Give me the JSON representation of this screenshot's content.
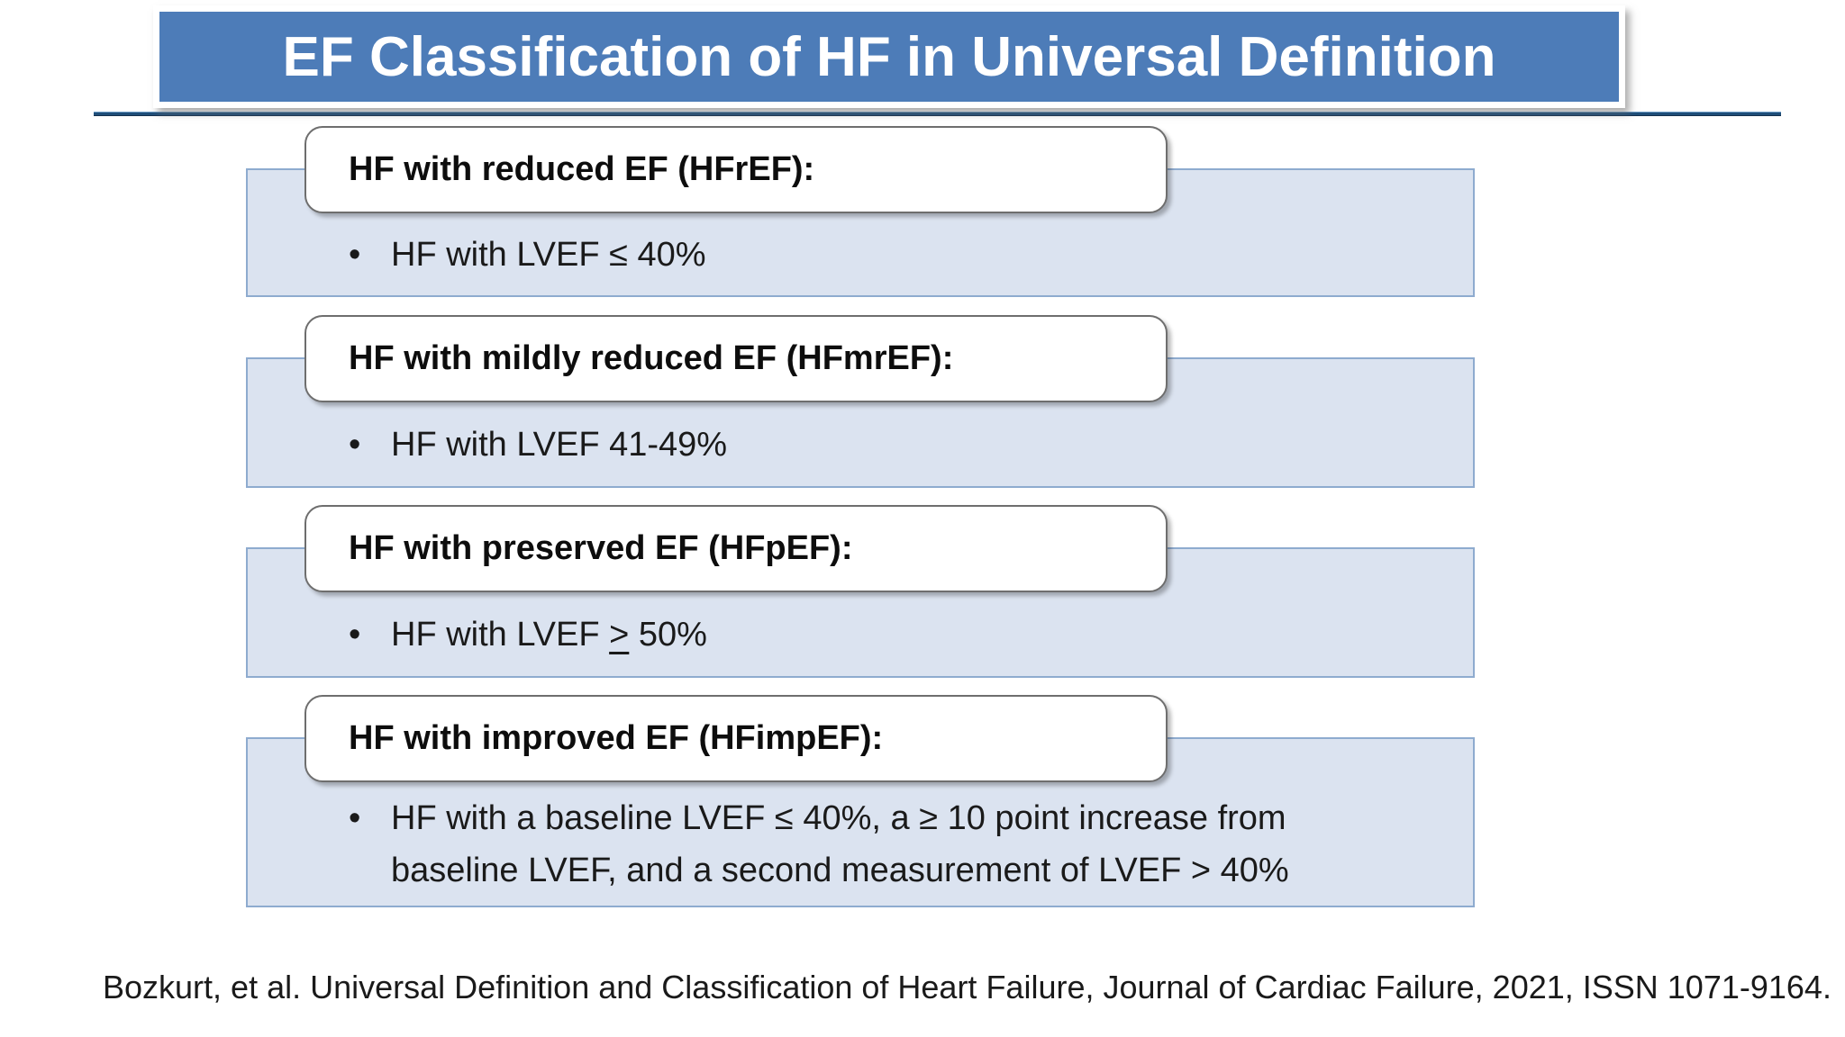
{
  "slide": {
    "title": "EF Classification of HF in Universal Definition",
    "citation": "Bozkurt, et al. Universal Definition and Classification of Heart Failure, Journal of Cardiac Failure, 2021,  ISSN 1071-9164."
  },
  "bullet_glyph": "•",
  "blocks": [
    {
      "heading": "HF with reduced EF (HFrEF):",
      "bullets": [
        [
          {
            "t": "HF with LVEF ≤ 40%"
          }
        ]
      ]
    },
    {
      "heading": "HF with mildly reduced EF (HFmrEF):",
      "bullets": [
        [
          {
            "t": "HF with LVEF 41-49%"
          }
        ]
      ]
    },
    {
      "heading": "HF with preserved EF (HFpEF):",
      "bullets": [
        [
          {
            "t": "HF with LVEF "
          },
          {
            "t": ">",
            "u": true
          },
          {
            "t": " 50%"
          }
        ]
      ]
    },
    {
      "heading": "HF with improved EF (HFimpEF):",
      "bullets": [
        [
          {
            "t": "HF with a baseline LVEF ≤ 40%, a ≥ 10 point increase from baseline LVEF, and a second measurement of LVEF > 40%"
          }
        ]
      ]
    }
  ],
  "colors": {
    "banner_fill": "#4d7cb8",
    "banner_text": "#ffffff",
    "divider_line": "#1f4e79",
    "panel_fill": "#dbe3f0",
    "panel_border": "#8eabcf",
    "header_fill": "#ffffff",
    "header_border": "#6e6e6e",
    "body_text": "#1a1a1a"
  }
}
